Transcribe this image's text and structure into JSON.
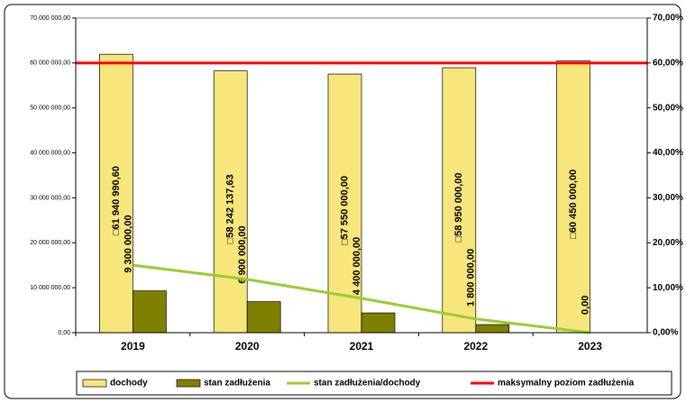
{
  "chart_data": {
    "type": "bar",
    "categories": [
      "2019",
      "2020",
      "2021",
      "2022",
      "2023"
    ],
    "ylim": [
      0,
      70000000
    ],
    "yticks": [
      {
        "value": 0,
        "label": "0,00"
      },
      {
        "value": 10000000,
        "label": "10 000 000,00"
      },
      {
        "value": 20000000,
        "label": "20 000 000,00"
      },
      {
        "value": 30000000,
        "label": "30 000 000,00"
      },
      {
        "value": 40000000,
        "label": "40 000 000,00"
      },
      {
        "value": 50000000,
        "label": "50 000 000,00"
      },
      {
        "value": 60000000,
        "label": "60 000 000,00"
      },
      {
        "value": 70000000,
        "label": "70 000 000,00"
      }
    ],
    "y2lim": [
      0,
      70
    ],
    "y2ticks": [
      {
        "value": 0,
        "label": "0,00%"
      },
      {
        "value": 10,
        "label": "10,00%"
      },
      {
        "value": 20,
        "label": "20,00%"
      },
      {
        "value": 30,
        "label": "30,00%"
      },
      {
        "value": 40,
        "label": "40,00%"
      },
      {
        "value": 50,
        "label": "50,00%"
      },
      {
        "value": 60,
        "label": "60,00%"
      },
      {
        "value": 70,
        "label": "70,00%"
      }
    ],
    "series": [
      {
        "name": "dochody",
        "type": "bar",
        "color": "#f7e67c",
        "values": [
          61940990.6,
          58242137.63,
          57550000,
          58950000,
          60450000
        ],
        "value_labels": [
          "□61 940 990,60",
          "□58 242 137,63",
          "□57 550 000,00",
          "□58 950 000,00",
          "□60 450 000,00"
        ]
      },
      {
        "name": "stan zadłużenia",
        "type": "bar",
        "color": "#808000",
        "values": [
          9300000,
          6900000,
          4400000,
          1800000,
          0
        ],
        "value_labels": [
          "9 300 000,00",
          "6 900 000,00",
          "4 400 000,00",
          "1 800 000,00",
          "0,00"
        ]
      },
      {
        "name": "stan zadłużenia/dochody",
        "type": "line",
        "axis": "y2",
        "color": "#99cc33",
        "values": [
          15.01,
          11.85,
          7.65,
          3.05,
          0
        ]
      },
      {
        "name": "maksymalny poziom zadłużenia",
        "type": "line",
        "axis": "y2",
        "color": "#ff0000",
        "values": [
          60,
          60,
          60,
          60,
          60
        ]
      }
    ]
  }
}
